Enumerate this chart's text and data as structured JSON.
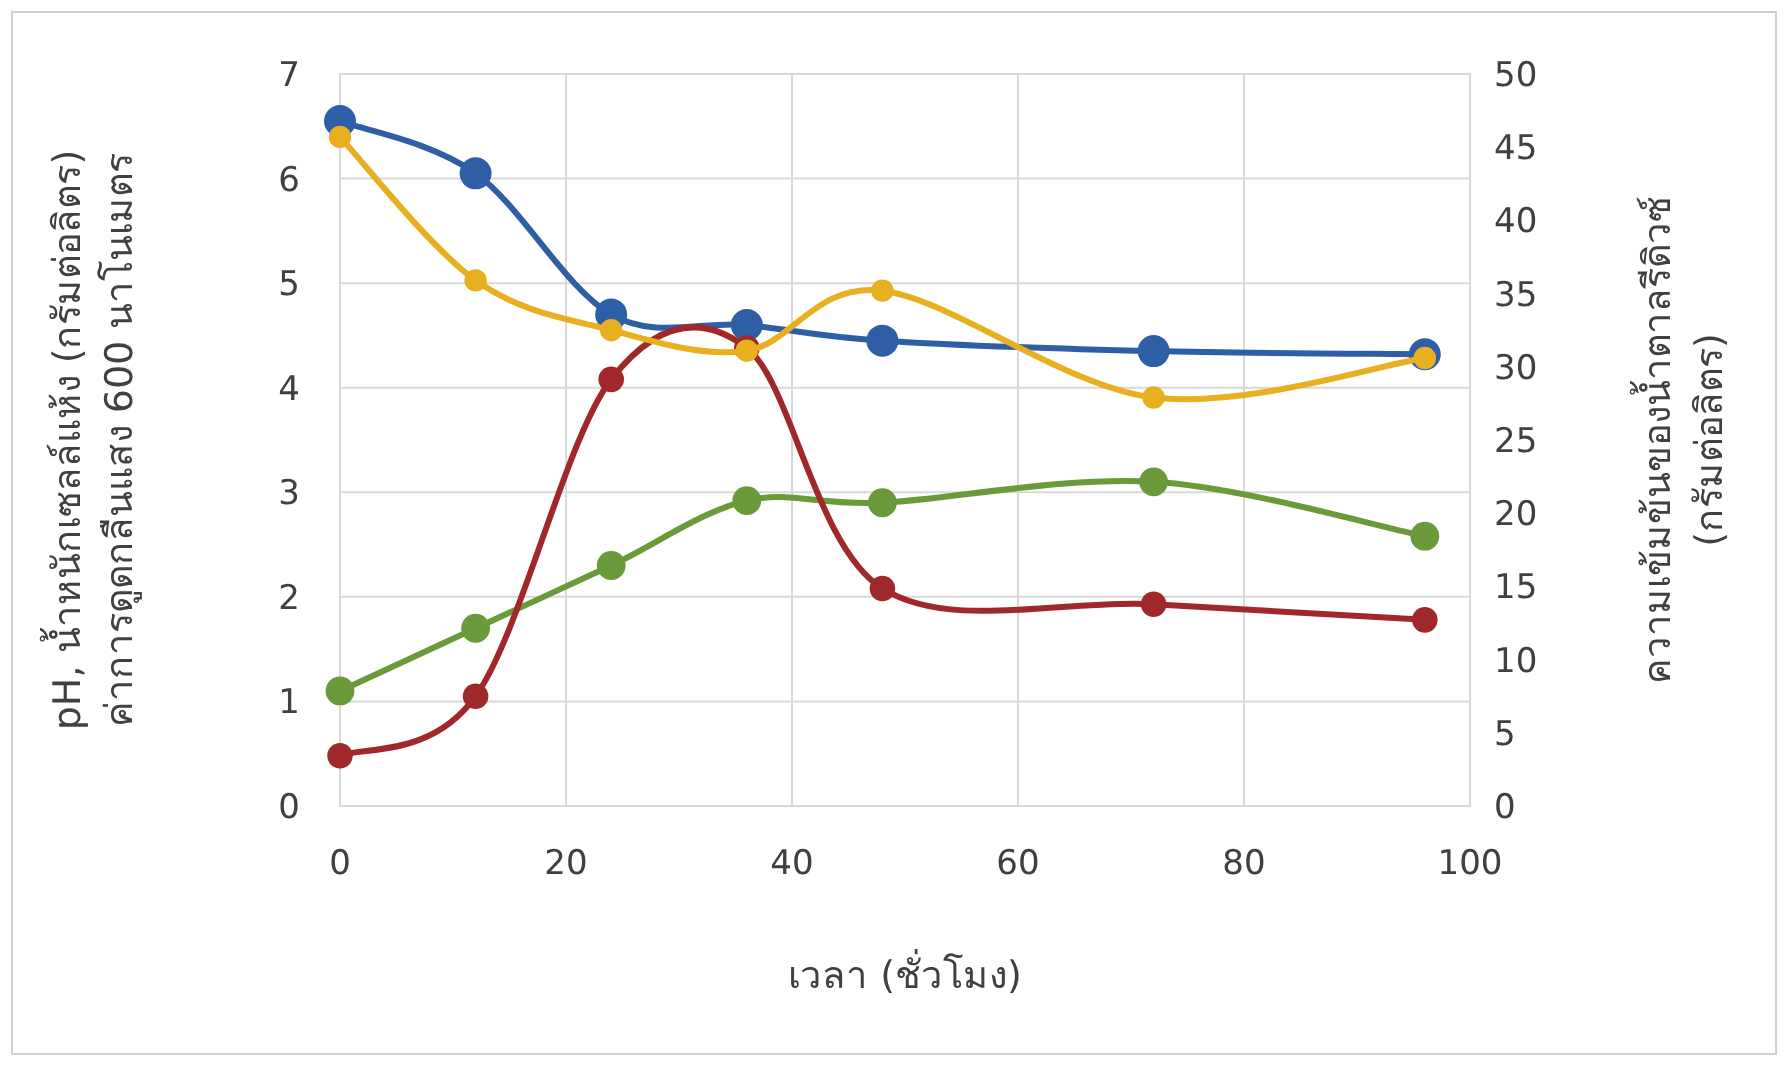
{
  "chart_data": {
    "type": "line",
    "xlabel": "เวลา (ชั่วโมง)",
    "ylabel": "pH, น้ำหนักเซลล์แห้ง (กรัมต่อลิตร)\nค่าการดูดกลืนแสง 600 นาโนเมตร",
    "y2label": "ความเข้มข้นของน้ำตาลรีดิวซ์\n(กรัมต่อลิตร)",
    "x": [
      0,
      12,
      24,
      36,
      48,
      72,
      96
    ],
    "xlim": [
      0,
      100
    ],
    "xticks": [
      0,
      20,
      40,
      60,
      80,
      100
    ],
    "ylim": [
      0,
      7
    ],
    "yticks": [
      0,
      1,
      2,
      3,
      4,
      5,
      6,
      7
    ],
    "y2lim": [
      0,
      50
    ],
    "y2ticks": [
      0,
      5,
      10,
      15,
      20,
      25,
      30,
      35,
      40,
      45,
      50
    ],
    "grid": true,
    "marker": "circle",
    "line_style": "solid",
    "series": [
      {
        "color": "#2e5fa6",
        "values": [
          6.55,
          6.05,
          4.7,
          4.6,
          4.45,
          4.35,
          4.32
        ]
      },
      {
        "color": "#6a9a3a",
        "values": [
          1.1,
          1.7,
          2.3,
          2.92,
          2.9,
          3.1,
          2.58
        ]
      },
      {
        "color": "#a0282a",
        "values": [
          0.48,
          1.05,
          4.08,
          4.38,
          2.08,
          1.93,
          1.78
        ]
      },
      {
        "color": "#e8b020",
        "axis": "y2",
        "values": [
          45.7,
          35.9,
          32.5,
          31.1,
          35.2,
          27.9,
          30.6
        ]
      }
    ]
  }
}
